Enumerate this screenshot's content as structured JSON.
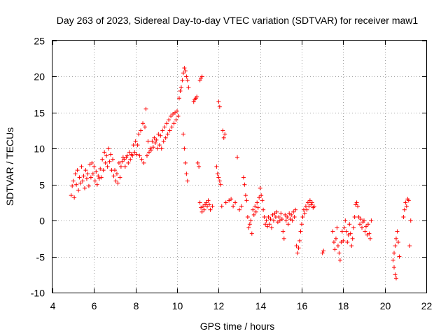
{
  "chart_data": {
    "type": "scatter",
    "title": "Day 263 of 2023, Sidereal Day-to-day VTEC variation (SDTVAR) for receiver maw1",
    "xlabel": "GPS time / hours",
    "ylabel": "SDTVAR / TECUs",
    "xlim": [
      4,
      22
    ],
    "ylim": [
      -10,
      25
    ],
    "xticks": [
      4,
      6,
      8,
      10,
      12,
      14,
      16,
      18,
      20,
      22
    ],
    "yticks": [
      -10,
      -5,
      0,
      5,
      10,
      15,
      20,
      25
    ],
    "xtick_labels": [
      "4",
      "6",
      "8",
      "10",
      "12",
      "14",
      "16",
      "18",
      "20",
      "22"
    ],
    "ytick_labels": [
      "-10",
      "-5",
      "0",
      "5",
      "10",
      "15",
      "20",
      "25"
    ],
    "grid": true,
    "marker": "+",
    "color": "#ff0000",
    "series": [
      {
        "name": "maw1",
        "points": [
          [
            4.9,
            3.5
          ],
          [
            4.95,
            4.8
          ],
          [
            5.0,
            5.5
          ],
          [
            5.05,
            3.2
          ],
          [
            5.1,
            6.5
          ],
          [
            5.15,
            5.0
          ],
          [
            5.2,
            7.0
          ],
          [
            5.25,
            4.2
          ],
          [
            5.3,
            6.0
          ],
          [
            5.35,
            5.2
          ],
          [
            5.4,
            7.5
          ],
          [
            5.45,
            5.5
          ],
          [
            5.5,
            6.2
          ],
          [
            5.55,
            4.5
          ],
          [
            5.6,
            7.0
          ],
          [
            5.65,
            5.8
          ],
          [
            5.7,
            6.5
          ],
          [
            5.75,
            4.8
          ],
          [
            5.8,
            7.8
          ],
          [
            5.85,
            6.0
          ],
          [
            5.9,
            8.0
          ],
          [
            5.95,
            6.5
          ],
          [
            6.0,
            7.5
          ],
          [
            6.05,
            5.5
          ],
          [
            6.1,
            6.8
          ],
          [
            6.15,
            5.0
          ],
          [
            6.2,
            6.2
          ],
          [
            6.25,
            5.8
          ],
          [
            6.3,
            7.2
          ],
          [
            6.35,
            6.0
          ],
          [
            6.4,
            8.5
          ],
          [
            6.45,
            7.0
          ],
          [
            6.5,
            9.5
          ],
          [
            6.55,
            8.0
          ],
          [
            6.6,
            9.0
          ],
          [
            6.65,
            7.5
          ],
          [
            6.7,
            10.0
          ],
          [
            6.75,
            8.2
          ],
          [
            6.8,
            9.2
          ],
          [
            6.85,
            7.0
          ],
          [
            6.9,
            8.5
          ],
          [
            6.95,
            6.2
          ],
          [
            7.0,
            7.0
          ],
          [
            7.05,
            5.5
          ],
          [
            7.1,
            6.5
          ],
          [
            7.15,
            5.2
          ],
          [
            7.2,
            8.0
          ],
          [
            7.25,
            6.0
          ],
          [
            7.3,
            7.5
          ],
          [
            7.35,
            8.2
          ],
          [
            7.4,
            8.8
          ],
          [
            7.45,
            8.5
          ],
          [
            7.5,
            7.5
          ],
          [
            7.55,
            8.8
          ],
          [
            7.6,
            9.0
          ],
          [
            7.65,
            8.0
          ],
          [
            7.7,
            9.5
          ],
          [
            7.75,
            8.5
          ],
          [
            7.8,
            9.2
          ],
          [
            7.85,
            9.0
          ],
          [
            7.9,
            10.5
          ],
          [
            7.95,
            9.5
          ],
          [
            8.0,
            11.0
          ],
          [
            8.05,
            9.2
          ],
          [
            8.1,
            10.5
          ],
          [
            8.15,
            12.0
          ],
          [
            8.2,
            9.0
          ],
          [
            8.25,
            12.5
          ],
          [
            8.3,
            8.5
          ],
          [
            8.35,
            13.5
          ],
          [
            8.4,
            8.0
          ],
          [
            8.45,
            13.0
          ],
          [
            8.5,
            15.5
          ],
          [
            8.55,
            9.0
          ],
          [
            8.6,
            11.0
          ],
          [
            8.65,
            9.5
          ],
          [
            8.7,
            10.0
          ],
          [
            8.75,
            9.8
          ],
          [
            8.8,
            11.0
          ],
          [
            8.85,
            10.2
          ],
          [
            8.9,
            11.5
          ],
          [
            8.95,
            10.8
          ],
          [
            9.0,
            11.2
          ],
          [
            9.05,
            10.0
          ],
          [
            9.1,
            12.0
          ],
          [
            9.15,
            10.5
          ],
          [
            9.2,
            11.8
          ],
          [
            9.25,
            10.0
          ],
          [
            9.3,
            12.5
          ],
          [
            9.35,
            11.0
          ],
          [
            9.4,
            13.0
          ],
          [
            9.45,
            11.5
          ],
          [
            9.5,
            13.5
          ],
          [
            9.55,
            12.0
          ],
          [
            9.6,
            14.0
          ],
          [
            9.65,
            12.5
          ],
          [
            9.7,
            14.5
          ],
          [
            9.75,
            13.0
          ],
          [
            9.8,
            14.8
          ],
          [
            9.85,
            13.5
          ],
          [
            9.9,
            15.0
          ],
          [
            9.95,
            14.0
          ],
          [
            10.0,
            15.2
          ],
          [
            10.05,
            14.5
          ],
          [
            10.1,
            17.0
          ],
          [
            10.15,
            18.0
          ],
          [
            10.2,
            18.5
          ],
          [
            10.25,
            19.5
          ],
          [
            10.3,
            20.5
          ],
          [
            10.35,
            21.2
          ],
          [
            10.4,
            20.8
          ],
          [
            10.45,
            20.0
          ],
          [
            10.5,
            19.5
          ],
          [
            10.55,
            18.5
          ],
          [
            10.3,
            12.0
          ],
          [
            10.35,
            10.0
          ],
          [
            10.4,
            8.0
          ],
          [
            10.45,
            6.5
          ],
          [
            10.5,
            5.5
          ],
          [
            10.8,
            16.5
          ],
          [
            10.85,
            16.8
          ],
          [
            10.9,
            17.0
          ],
          [
            10.95,
            17.2
          ],
          [
            11.0,
            8.0
          ],
          [
            11.05,
            7.5
          ],
          [
            11.1,
            19.5
          ],
          [
            11.15,
            19.8
          ],
          [
            11.2,
            20.0
          ],
          [
            11.1,
            2.5
          ],
          [
            11.15,
            1.8
          ],
          [
            11.2,
            1.2
          ],
          [
            11.25,
            2.0
          ],
          [
            11.3,
            1.5
          ],
          [
            11.35,
            2.2
          ],
          [
            11.4,
            2.5
          ],
          [
            11.45,
            2.0
          ],
          [
            11.5,
            2.8
          ],
          [
            11.55,
            2.2
          ],
          [
            11.6,
            1.5
          ],
          [
            11.7,
            2.0
          ],
          [
            11.9,
            7.5
          ],
          [
            11.95,
            6.5
          ],
          [
            12.0,
            6.0
          ],
          [
            12.05,
            5.5
          ],
          [
            12.1,
            5.0
          ],
          [
            12.0,
            16.5
          ],
          [
            12.05,
            15.8
          ],
          [
            12.15,
            2.0
          ],
          [
            12.2,
            12.5
          ],
          [
            12.25,
            11.5
          ],
          [
            12.3,
            12.0
          ],
          [
            12.35,
            2.5
          ],
          [
            12.5,
            2.8
          ],
          [
            12.6,
            3.0
          ],
          [
            12.7,
            2.0
          ],
          [
            12.8,
            2.5
          ],
          [
            12.9,
            8.8
          ],
          [
            13.0,
            1.5
          ],
          [
            13.1,
            2.0
          ],
          [
            13.2,
            6.0
          ],
          [
            13.25,
            5.0
          ],
          [
            13.3,
            3.5
          ],
          [
            13.35,
            2.8
          ],
          [
            13.4,
            0.5
          ],
          [
            13.45,
            -1.0
          ],
          [
            13.5,
            -0.5
          ],
          [
            13.55,
            0.0
          ],
          [
            13.6,
            -1.8
          ],
          [
            13.65,
            1.5
          ],
          [
            13.7,
            0.8
          ],
          [
            13.75,
            2.0
          ],
          [
            13.8,
            1.2
          ],
          [
            13.85,
            2.5
          ],
          [
            13.9,
            1.8
          ],
          [
            13.95,
            3.2
          ],
          [
            14.0,
            4.5
          ],
          [
            14.05,
            3.5
          ],
          [
            14.1,
            2.8
          ],
          [
            14.15,
            1.5
          ],
          [
            14.2,
            0.5
          ],
          [
            14.25,
            -0.5
          ],
          [
            14.3,
            0.0
          ],
          [
            14.35,
            -0.8
          ],
          [
            14.4,
            0.5
          ],
          [
            14.45,
            -0.5
          ],
          [
            14.5,
            0.2
          ],
          [
            14.55,
            -1.0
          ],
          [
            14.6,
            0.8
          ],
          [
            14.65,
            0.0
          ],
          [
            14.7,
            1.0
          ],
          [
            14.75,
            0.5
          ],
          [
            14.8,
            1.2
          ],
          [
            14.85,
            -0.2
          ],
          [
            14.9,
            0.5
          ],
          [
            14.95,
            0.0
          ],
          [
            15.0,
            1.0
          ],
          [
            15.05,
            0.2
          ],
          [
            15.1,
            -1.5
          ],
          [
            15.15,
            -2.5
          ],
          [
            15.2,
            0.8
          ],
          [
            15.25,
            0.0
          ],
          [
            15.3,
            0.5
          ],
          [
            15.35,
            -0.5
          ],
          [
            15.4,
            1.0
          ],
          [
            15.45,
            0.2
          ],
          [
            15.5,
            0.8
          ],
          [
            15.55,
            0.0
          ],
          [
            15.6,
            1.2
          ],
          [
            15.65,
            0.5
          ],
          [
            15.7,
            1.5
          ],
          [
            15.75,
            -3.5
          ],
          [
            15.8,
            -4.5
          ],
          [
            15.85,
            -3.8
          ],
          [
            15.9,
            -2.8
          ],
          [
            15.95,
            -1.5
          ],
          [
            16.0,
            -0.5
          ],
          [
            16.05,
            0.5
          ],
          [
            16.1,
            1.5
          ],
          [
            16.15,
            1.0
          ],
          [
            16.2,
            2.0
          ],
          [
            16.25,
            1.5
          ],
          [
            16.3,
            2.5
          ],
          [
            16.35,
            2.0
          ],
          [
            16.4,
            2.8
          ],
          [
            16.45,
            2.2
          ],
          [
            16.5,
            2.5
          ],
          [
            16.55,
            1.8
          ],
          [
            16.6,
            2.0
          ],
          [
            17.0,
            -4.5
          ],
          [
            17.05,
            -4.2
          ],
          [
            17.5,
            -1.5
          ],
          [
            17.55,
            -3.0
          ],
          [
            17.6,
            -4.0
          ],
          [
            17.65,
            -2.5
          ],
          [
            17.7,
            -1.0
          ],
          [
            17.75,
            -3.5
          ],
          [
            17.8,
            -4.5
          ],
          [
            17.85,
            -5.5
          ],
          [
            17.9,
            -3.0
          ],
          [
            17.95,
            -1.5
          ],
          [
            18.0,
            -2.8
          ],
          [
            18.05,
            -1.0
          ],
          [
            18.1,
            0.0
          ],
          [
            18.15,
            -1.5
          ],
          [
            18.2,
            -3.0
          ],
          [
            18.25,
            -2.0
          ],
          [
            18.3,
            -0.5
          ],
          [
            18.35,
            -1.8
          ],
          [
            18.4,
            -3.5
          ],
          [
            18.45,
            -2.5
          ],
          [
            18.5,
            -1.0
          ],
          [
            18.55,
            0.5
          ],
          [
            18.6,
            2.2
          ],
          [
            18.65,
            2.5
          ],
          [
            18.7,
            2.0
          ],
          [
            18.75,
            0.5
          ],
          [
            18.8,
            -0.5
          ],
          [
            18.85,
            0.2
          ],
          [
            18.9,
            -1.0
          ],
          [
            18.95,
            -0.2
          ],
          [
            19.0,
            0.0
          ],
          [
            19.05,
            -1.5
          ],
          [
            19.1,
            -0.8
          ],
          [
            19.15,
            -2.0
          ],
          [
            19.2,
            -0.5
          ],
          [
            19.25,
            -1.8
          ],
          [
            19.3,
            -2.5
          ],
          [
            19.35,
            0.0
          ],
          [
            20.4,
            -5.5
          ],
          [
            20.45,
            -6.5
          ],
          [
            20.5,
            -7.5
          ],
          [
            20.55,
            -8.0
          ],
          [
            20.45,
            -4.5
          ],
          [
            20.5,
            -3.5
          ],
          [
            20.55,
            -2.5
          ],
          [
            20.6,
            -1.5
          ],
          [
            20.65,
            -3.0
          ],
          [
            20.7,
            -5.0
          ],
          [
            20.9,
            0.5
          ],
          [
            20.95,
            1.5
          ],
          [
            21.0,
            2.5
          ],
          [
            21.05,
            2.0
          ],
          [
            21.1,
            3.0
          ],
          [
            21.15,
            2.8
          ],
          [
            21.2,
            -3.5
          ],
          [
            21.25,
            0.0
          ]
        ]
      }
    ]
  }
}
